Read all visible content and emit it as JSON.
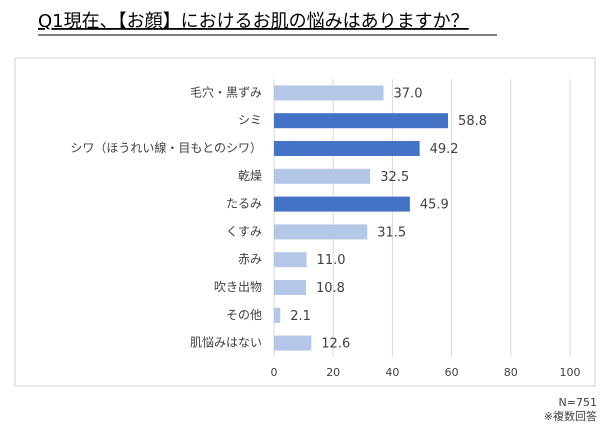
{
  "chart_data": {
    "type": "bar",
    "orientation": "horizontal",
    "title": "Q1現在、【お顔】におけるお肌の悩みはありますか？",
    "categories": [
      "毛穴・黒ずみ",
      "シミ",
      "シワ（ほうれい線・目もとのシワ）",
      "乾燥",
      "たるみ",
      "くすみ",
      "赤み",
      "吹き出物",
      "その他",
      "肌悩みはない"
    ],
    "values": [
      37.0,
      58.8,
      49.2,
      32.5,
      45.9,
      31.5,
      11.0,
      10.8,
      2.1,
      12.6
    ],
    "value_labels": [
      "37.0",
      "58.8",
      "49.2",
      "32.5",
      "45.9",
      "31.5",
      "11.0",
      "10.8",
      "2.1",
      "12.6"
    ],
    "colors": [
      "#b4c7e7",
      "#4472c4",
      "#4472c4",
      "#b4c7e7",
      "#4472c4",
      "#b4c7e7",
      "#b4c7e7",
      "#b4c7e7",
      "#b4c7e7",
      "#b4c7e7"
    ],
    "xlim": [
      0,
      100
    ],
    "xticks": [
      0,
      20,
      40,
      60,
      80,
      100
    ],
    "grid": true,
    "annotations": [
      "N=751",
      "※複数回答"
    ]
  }
}
